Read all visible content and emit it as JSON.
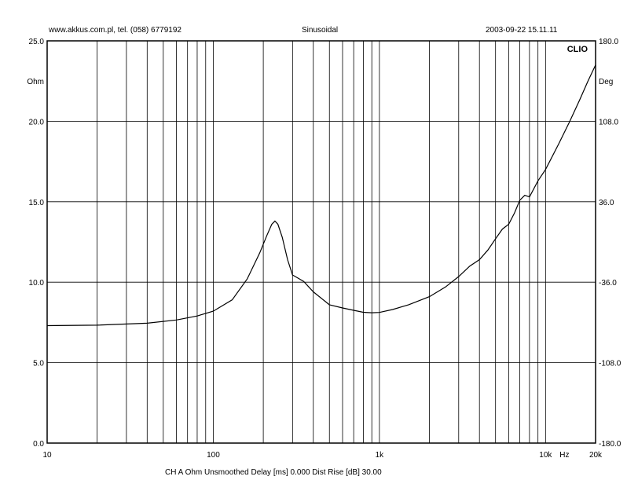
{
  "header": {
    "left": "www.akkus.com.pl, tel. (058) 6779192",
    "center": "Sinusoidal",
    "right": "2003-09-22 15.11.11"
  },
  "footer": "CH A   Ohm   Unsmoothed   Delay [ms] 0.000   Dist Rise [dB] 30.00",
  "chart_data": {
    "type": "line",
    "brand": "CLIO",
    "xlabel": "Hz",
    "ylabel_left": "Ohm",
    "ylabel_right": "Deg",
    "x_scale": "log",
    "xlim": [
      10,
      20000
    ],
    "ylim": [
      0,
      25
    ],
    "ylim_right": [
      -180,
      180
    ],
    "y_ticks": [
      "0.0",
      "5.0",
      "10.0",
      "15.0",
      "20.0",
      "25.0"
    ],
    "y_tick_values": [
      0,
      5,
      10,
      15,
      20,
      25
    ],
    "y_right_ticks": [
      "-180.0",
      "-108.0",
      "-36.0",
      "36.0",
      "108.0",
      "180.0"
    ],
    "y_right_tick_values": [
      -180,
      -108,
      -36,
      36,
      108,
      180
    ],
    "x_ticks": [
      "10",
      "100",
      "1k",
      "10k",
      "20k"
    ],
    "x_tick_values": [
      10,
      100,
      1000,
      10000,
      20000
    ],
    "grid": true,
    "series": [
      {
        "x": [
          10,
          20,
          40,
          60,
          80,
          100,
          130,
          160,
          190,
          210,
          225,
          235,
          245,
          260,
          280,
          300,
          350,
          400,
          500,
          600,
          700,
          800,
          900,
          1000,
          1200,
          1500,
          2000,
          2500,
          3000,
          3500,
          4000,
          4500,
          5000,
          5500,
          6000,
          6500,
          7000,
          7500,
          8000,
          9000,
          10000,
          12000,
          14000,
          16000,
          18000,
          20000
        ],
        "y": [
          7.3,
          7.33,
          7.45,
          7.65,
          7.9,
          8.2,
          8.9,
          10.2,
          11.8,
          12.9,
          13.6,
          13.8,
          13.6,
          12.8,
          11.4,
          10.45,
          10.05,
          9.4,
          8.6,
          8.4,
          8.25,
          8.13,
          8.1,
          8.12,
          8.3,
          8.6,
          9.1,
          9.7,
          10.35,
          11.0,
          11.4,
          12.0,
          12.7,
          13.3,
          13.6,
          14.3,
          15.1,
          15.4,
          15.3,
          16.3,
          17.0,
          18.6,
          20.0,
          21.3,
          22.5,
          23.5
        ]
      }
    ]
  }
}
